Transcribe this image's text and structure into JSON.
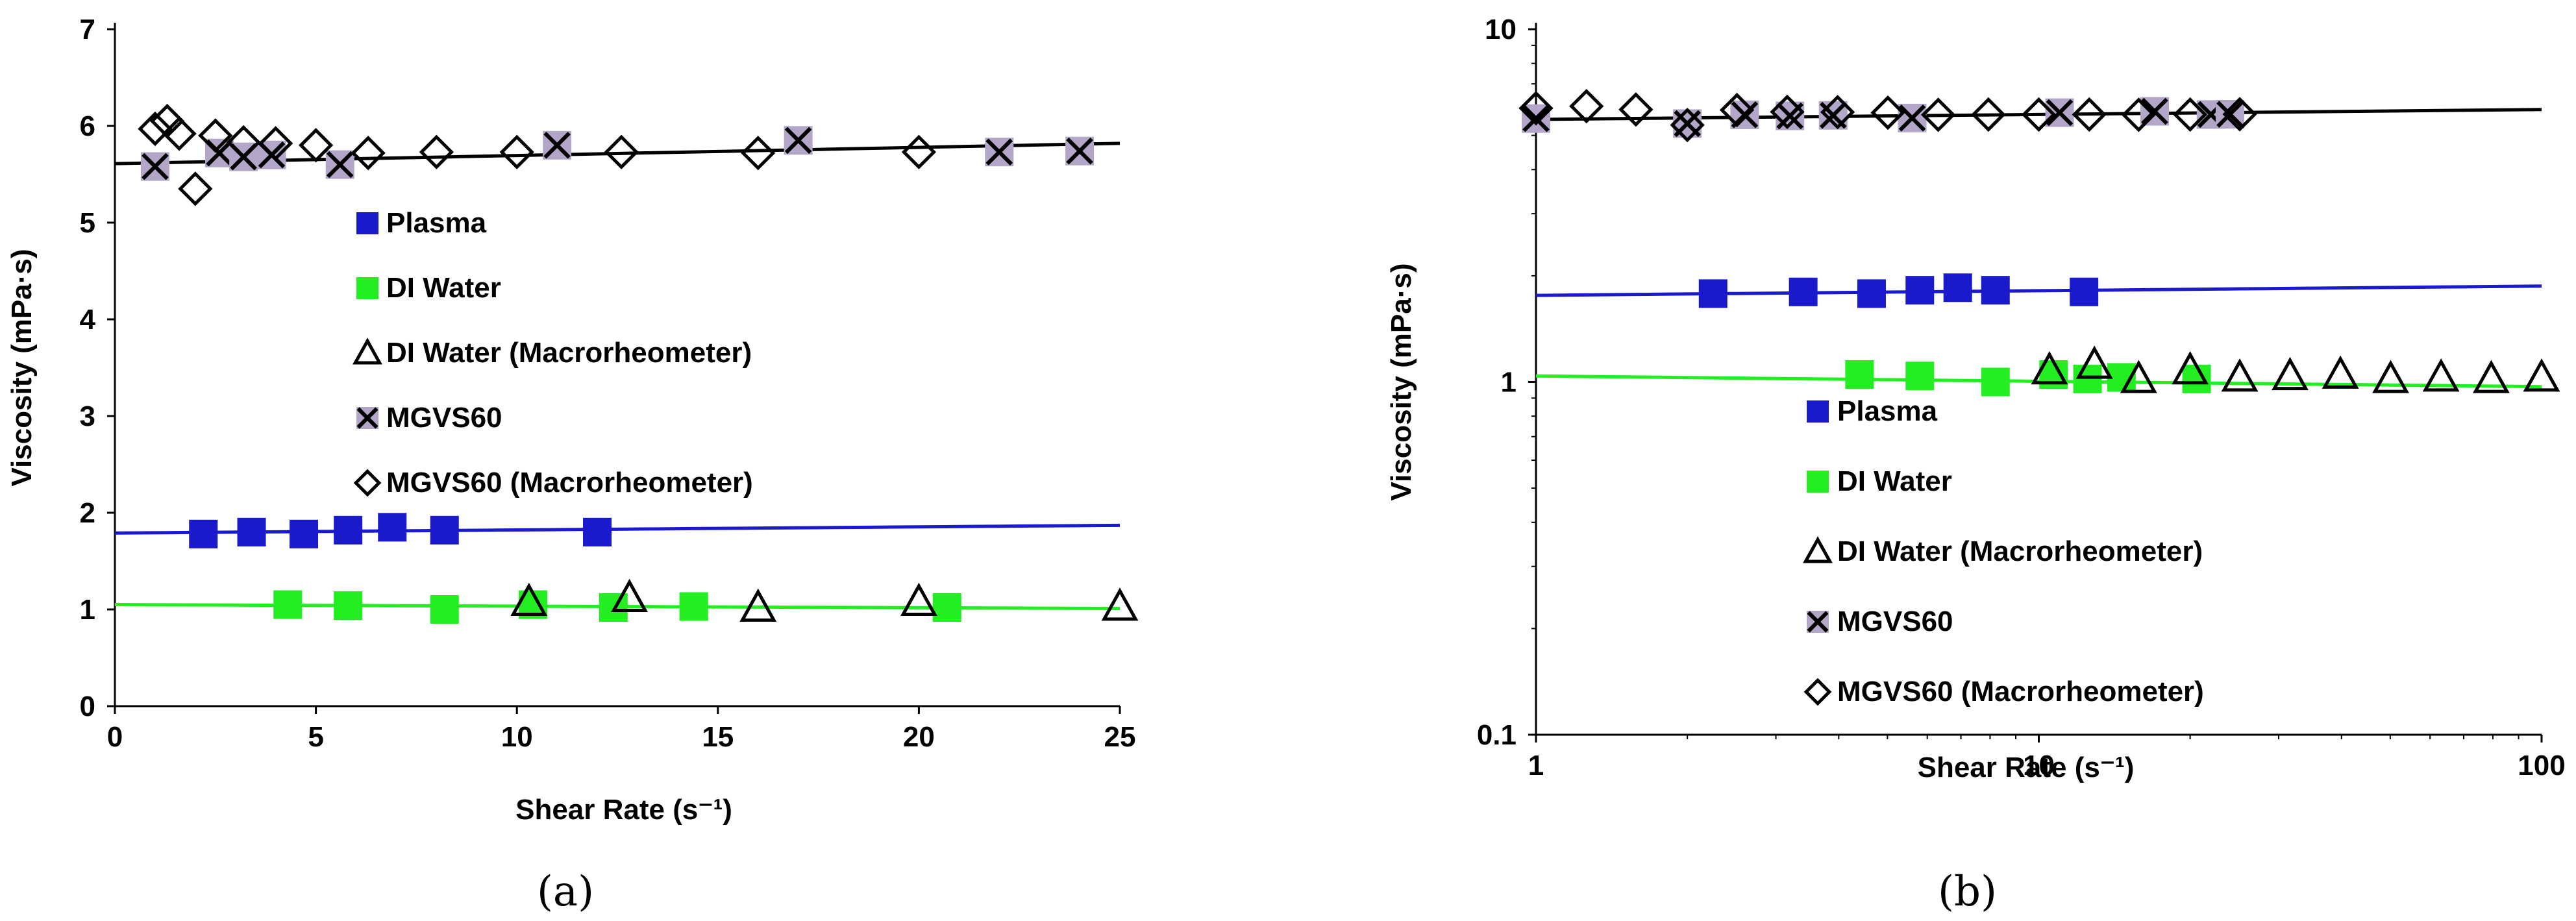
{
  "chart_data": [
    {
      "type": "scatter",
      "panel_label": "(a)",
      "xlabel": "Shear  Rate (s⁻¹)",
      "ylabel": "Viscosity (mPa·s)",
      "xlim": [
        0,
        25
      ],
      "ylim": [
        0,
        7
      ],
      "xscale": "linear",
      "yscale": "linear",
      "x_ticks": [
        0,
        5,
        10,
        15,
        20,
        25
      ],
      "x_tick_labels": [
        "0",
        "5",
        "10",
        "15",
        "20",
        "25"
      ],
      "y_ticks": [
        0,
        1,
        2,
        3,
        4,
        5,
        6,
        7
      ],
      "y_tick_labels": [
        "0",
        "1",
        "2",
        "3",
        "4",
        "5",
        "6",
        "7"
      ],
      "grid": false,
      "legend_position": "center",
      "series": [
        {
          "name": "Plasma",
          "marker": "square-filled",
          "color": "#1a1acc",
          "points": [
            [
              2.2,
              1.78
            ],
            [
              3.4,
              1.8
            ],
            [
              4.7,
              1.78
            ],
            [
              5.8,
              1.82
            ],
            [
              6.9,
              1.85
            ],
            [
              8.2,
              1.82
            ],
            [
              12.0,
              1.8
            ]
          ]
        },
        {
          "name": "DI Water",
          "marker": "square-filled",
          "color": "#22ee22",
          "points": [
            [
              4.3,
              1.05
            ],
            [
              5.8,
              1.04
            ],
            [
              8.2,
              1.0
            ],
            [
              10.4,
              1.05
            ],
            [
              12.4,
              1.02
            ],
            [
              14.4,
              1.03
            ],
            [
              20.7,
              1.02
            ]
          ]
        },
        {
          "name": "DI Water (Macrorheometer)",
          "marker": "triangle-open",
          "color": "#000000",
          "points": [
            [
              10.3,
              1.08
            ],
            [
              12.8,
              1.12
            ],
            [
              16.0,
              1.02
            ],
            [
              20.0,
              1.08
            ],
            [
              25.0,
              1.03
            ]
          ]
        },
        {
          "name": "MGVS60",
          "marker": "x-on-square",
          "color": "#000000",
          "fill": "#b3a6c9",
          "points": [
            [
              1.0,
              5.58
            ],
            [
              2.6,
              5.72
            ],
            [
              3.2,
              5.68
            ],
            [
              3.9,
              5.7
            ],
            [
              5.6,
              5.6
            ],
            [
              11.0,
              5.8
            ],
            [
              17.0,
              5.85
            ],
            [
              22.0,
              5.73
            ],
            [
              24.0,
              5.74
            ]
          ]
        },
        {
          "name": "MGVS60 (Macrorheometer)",
          "marker": "diamond-open",
          "color": "#000000",
          "points": [
            [
              1.0,
              5.97
            ],
            [
              1.3,
              6.05
            ],
            [
              1.6,
              5.92
            ],
            [
              2.0,
              5.35
            ],
            [
              2.5,
              5.9
            ],
            [
              3.2,
              5.83
            ],
            [
              4.0,
              5.82
            ],
            [
              5.0,
              5.8
            ],
            [
              6.3,
              5.72
            ],
            [
              8.0,
              5.73
            ],
            [
              10.0,
              5.73
            ],
            [
              12.6,
              5.73
            ],
            [
              16.0,
              5.72
            ],
            [
              20.0,
              5.73
            ]
          ]
        }
      ],
      "fit_lines": [
        {
          "series": "Plasma",
          "color": "#1a1acc",
          "x": [
            0,
            25
          ],
          "y": [
            1.79,
            1.87
          ]
        },
        {
          "series": "DI Water",
          "color": "#22ee22",
          "x": [
            0,
            25
          ],
          "y": [
            1.05,
            1.01
          ]
        },
        {
          "series": "MGVS60",
          "color": "#000000",
          "x": [
            0,
            25
          ],
          "y": [
            5.61,
            5.82
          ]
        }
      ]
    },
    {
      "type": "scatter",
      "panel_label": "(b)",
      "xlabel": "Shear  Rate (s⁻¹)",
      "ylabel": "Viscosity (mPa·s)",
      "xlim": [
        1,
        100
      ],
      "ylim": [
        0.1,
        10
      ],
      "xscale": "log",
      "yscale": "log",
      "x_ticks": [
        1,
        10,
        100
      ],
      "x_tick_labels": [
        "1",
        "10",
        "100"
      ],
      "y_ticks": [
        0.1,
        1,
        10
      ],
      "y_tick_labels": [
        "0.1",
        "1",
        "10"
      ],
      "grid": false,
      "legend_position": "lower-center",
      "series": [
        {
          "name": "Plasma",
          "marker": "square-filled",
          "color": "#1a1acc",
          "points": [
            [
              2.25,
              1.78
            ],
            [
              3.4,
              1.8
            ],
            [
              4.65,
              1.78
            ],
            [
              5.8,
              1.82
            ],
            [
              6.9,
              1.85
            ],
            [
              8.2,
              1.82
            ],
            [
              12.3,
              1.8
            ]
          ]
        },
        {
          "name": "DI Water",
          "marker": "square-filled",
          "color": "#22ee22",
          "points": [
            [
              4.4,
              1.05
            ],
            [
              5.8,
              1.04
            ],
            [
              8.2,
              1.0
            ],
            [
              10.7,
              1.05
            ],
            [
              12.5,
              1.02
            ],
            [
              14.6,
              1.03
            ],
            [
              20.6,
              1.02
            ]
          ]
        },
        {
          "name": "DI Water (Macrorheometer)",
          "marker": "triangle-open",
          "color": "#000000",
          "points": [
            [
              10.5,
              1.08
            ],
            [
              12.9,
              1.12
            ],
            [
              15.8,
              1.02
            ],
            [
              20.0,
              1.08
            ],
            [
              25.1,
              1.03
            ],
            [
              31.6,
              1.04
            ],
            [
              39.8,
              1.05
            ],
            [
              50.1,
              1.02
            ],
            [
              63.1,
              1.03
            ],
            [
              79.4,
              1.02
            ],
            [
              100.0,
              1.03
            ]
          ]
        },
        {
          "name": "MGVS60",
          "marker": "x-on-square",
          "color": "#000000",
          "fill": "#b3a6c9",
          "points": [
            [
              1.0,
              5.58
            ],
            [
              2.0,
              5.4
            ],
            [
              2.6,
              5.72
            ],
            [
              3.2,
              5.68
            ],
            [
              3.9,
              5.7
            ],
            [
              5.6,
              5.6
            ],
            [
              11.0,
              5.8
            ],
            [
              17.0,
              5.85
            ],
            [
              22.0,
              5.73
            ],
            [
              24.0,
              5.74
            ]
          ]
        },
        {
          "name": "MGVS60 (Macrorheometer)",
          "marker": "diamond-open",
          "color": "#000000",
          "points": [
            [
              1.0,
              5.97
            ],
            [
              1.26,
              6.05
            ],
            [
              1.58,
              5.92
            ],
            [
              2.0,
              5.35
            ],
            [
              2.51,
              5.9
            ],
            [
              3.16,
              5.83
            ],
            [
              3.98,
              5.82
            ],
            [
              5.01,
              5.8
            ],
            [
              6.31,
              5.72
            ],
            [
              7.94,
              5.73
            ],
            [
              10.0,
              5.73
            ],
            [
              12.6,
              5.73
            ],
            [
              15.8,
              5.72
            ],
            [
              20.0,
              5.73
            ],
            [
              25.1,
              5.74
            ]
          ]
        }
      ],
      "fit_lines": [
        {
          "series": "Plasma",
          "color": "#1a1acc",
          "x": [
            1,
            100
          ],
          "y": [
            1.76,
            1.87
          ]
        },
        {
          "series": "DI Water",
          "color": "#22ee22",
          "x": [
            1,
            100
          ],
          "y": [
            1.04,
            0.97
          ]
        },
        {
          "series": "MGVS60",
          "color": "#000000",
          "x": [
            1,
            100
          ],
          "y": [
            5.55,
            5.92
          ]
        }
      ]
    }
  ]
}
